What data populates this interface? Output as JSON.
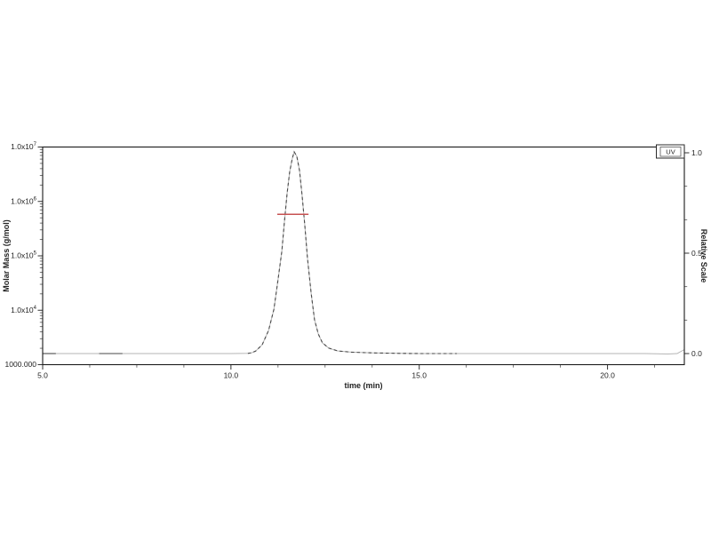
{
  "chart_data": {
    "type": "line",
    "title": "",
    "xlabel": "time (min)",
    "x_range": [
      5.0,
      22.04
    ],
    "x_major_ticks": [
      {
        "value": 5.0,
        "label": "5.0"
      },
      {
        "value": 10.0,
        "label": "10.0"
      },
      {
        "value": 15.0,
        "label": "15.0"
      },
      {
        "value": 20.0,
        "label": "20.0"
      }
    ],
    "x_minor_tick_step": 1.25,
    "left_axis": {
      "label": "Molar Mass (g/mol)",
      "scale": "log",
      "range": [
        1000,
        10000000
      ],
      "ticks": [
        {
          "value": 1000,
          "label": "1000.000",
          "sup": ""
        },
        {
          "value": 10000,
          "label": "1.0x10",
          "sup": "4"
        },
        {
          "value": 100000,
          "label": "1.0x10",
          "sup": "5"
        },
        {
          "value": 1000000,
          "label": "1.0x10",
          "sup": "6"
        },
        {
          "value": 10000000,
          "label": "1.0x10",
          "sup": "7"
        }
      ]
    },
    "right_axis": {
      "label": "Relative Scale",
      "range": [
        0.0,
        1.0
      ],
      "ticks": [
        {
          "value": 0.0,
          "label": "0.0"
        },
        {
          "value": 0.5,
          "label": "0.5"
        },
        {
          "value": 1.0,
          "label": "1.0"
        }
      ],
      "minor_ticks": [
        0.1667,
        0.3333,
        0.6667,
        0.8333
      ]
    },
    "legend": {
      "label": "UV",
      "position": "top-right"
    },
    "series": [
      {
        "name": "UV",
        "axis": "right",
        "line_style": "dashed",
        "color": "#4a4a4a",
        "faint_color": "#b5b5b5",
        "dash_overlay_range": [
          10.4,
          16.45
        ],
        "baseline_dark_dashes": [
          [
            5.0,
            5.35
          ],
          [
            6.5,
            7.12
          ]
        ],
        "points": [
          [
            5.0,
            0.0
          ],
          [
            6.0,
            0.0
          ],
          [
            7.0,
            0.0
          ],
          [
            8.0,
            0.0
          ],
          [
            9.0,
            0.0
          ],
          [
            10.0,
            0.0
          ],
          [
            10.45,
            0.001
          ],
          [
            10.55,
            0.004
          ],
          [
            10.66,
            0.013
          ],
          [
            10.83,
            0.044
          ],
          [
            11.0,
            0.115
          ],
          [
            11.14,
            0.221
          ],
          [
            11.25,
            0.367
          ],
          [
            11.35,
            0.509
          ],
          [
            11.42,
            0.655
          ],
          [
            11.49,
            0.796
          ],
          [
            11.56,
            0.907
          ],
          [
            11.63,
            0.972
          ],
          [
            11.68,
            1.005
          ],
          [
            11.75,
            0.982
          ],
          [
            11.82,
            0.912
          ],
          [
            11.89,
            0.788
          ],
          [
            11.96,
            0.642
          ],
          [
            12.03,
            0.478
          ],
          [
            12.13,
            0.301
          ],
          [
            12.22,
            0.168
          ],
          [
            12.32,
            0.097
          ],
          [
            12.43,
            0.053
          ],
          [
            12.6,
            0.027
          ],
          [
            12.84,
            0.013
          ],
          [
            13.19,
            0.007
          ],
          [
            13.78,
            0.003
          ],
          [
            14.5,
            0.001
          ],
          [
            15.0,
            0.0
          ],
          [
            16.0,
            0.0
          ],
          [
            17.0,
            0.0
          ],
          [
            18.0,
            0.0
          ],
          [
            19.0,
            0.0
          ],
          [
            20.0,
            0.0
          ],
          [
            21.0,
            0.0
          ],
          [
            21.6,
            -0.002
          ],
          [
            21.85,
            0.0
          ],
          [
            22.04,
            0.02
          ]
        ]
      },
      {
        "name": "molar-mass-segment",
        "axis": "left",
        "line_style": "solid",
        "color": "#c75252",
        "points": [
          [
            11.23,
            580000
          ],
          [
            12.06,
            580000
          ]
        ]
      }
    ]
  }
}
